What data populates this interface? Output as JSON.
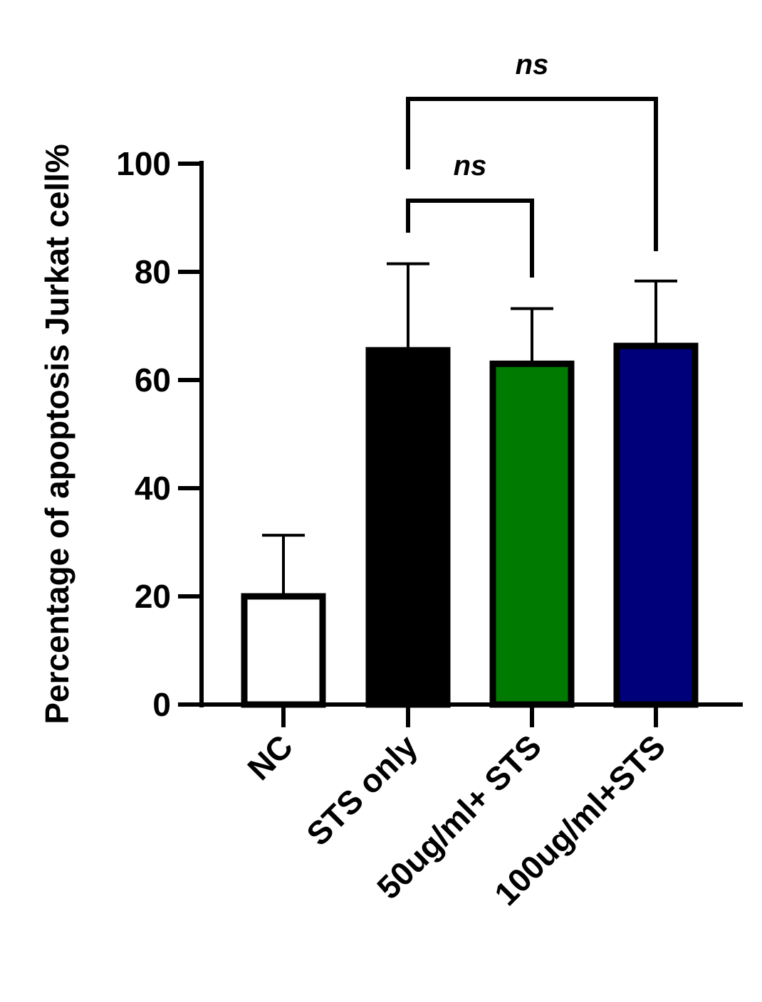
{
  "chart_data": {
    "type": "bar",
    "title": "",
    "xlabel": "",
    "ylabel": "Percentage of apoptosis Jurkat cell%",
    "ylim": [
      0,
      100
    ],
    "yticks": [
      "0",
      "20",
      "40",
      "60",
      "80",
      "100"
    ],
    "ytick_values": [
      0,
      20,
      40,
      60,
      80,
      100
    ],
    "categories": [
      "NC",
      "STS only",
      "50ug/ml+ STS",
      "100ug/ml+STS"
    ],
    "values": [
      20,
      65.5,
      63,
      66.3
    ],
    "error_upper": [
      11.3,
      16,
      10.2,
      12
    ],
    "bar_colors": [
      "#ffffff",
      "#000000",
      "#007a00",
      "#00007a"
    ],
    "grid": false,
    "legend": "none",
    "significance": [
      {
        "from": 1,
        "to": 2,
        "label": "ns"
      },
      {
        "from": 1,
        "to": 3,
        "label": "ns"
      }
    ]
  }
}
